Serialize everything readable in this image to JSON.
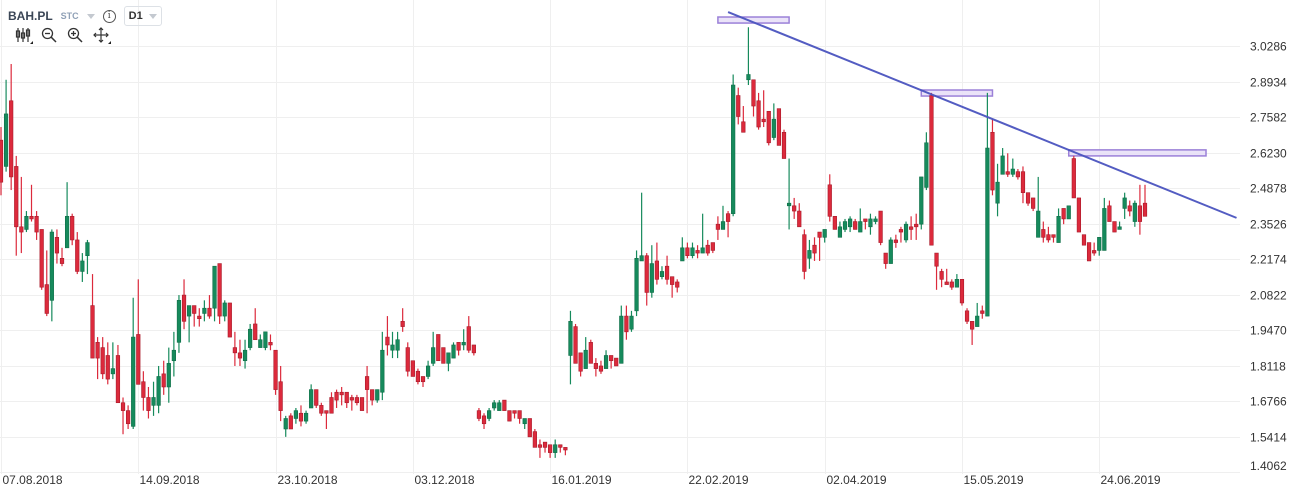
{
  "header": {
    "symbol": "BAH.PL",
    "market": "STC",
    "timeframe": "D1",
    "info_icon": "info-icon"
  },
  "toolbar": {
    "icons": [
      "candlestick-type-icon",
      "zoom-out-icon",
      "zoom-in-icon",
      "move-icon"
    ]
  },
  "colors": {
    "up": "#168a5c",
    "up_border": "#0f6e48",
    "down": "#dc2a3c",
    "down_border": "#a81a2a",
    "trendline": "#4a53bf",
    "zone_fill": "#e6def7",
    "zone_border": "#9b80d8",
    "grid": "#efefef"
  },
  "chart_data": {
    "type": "candlestick",
    "title": "BAH.PL D1",
    "ylim": [
      1.4062,
      3.2038
    ],
    "yticks": [
      "3.0286",
      "2.8934",
      "2.7582",
      "2.6230",
      "2.4878",
      "2.3526",
      "2.2174",
      "2.0822",
      "1.9470",
      "1.8118",
      "1.6766",
      "1.5414",
      "1.4062"
    ],
    "xticks": [
      {
        "index": 0,
        "label": "07.08.2018"
      },
      {
        "index": 27,
        "label": "14.09.2018"
      },
      {
        "index": 54,
        "label": "23.10.2018"
      },
      {
        "index": 81,
        "label": "03.12.2018"
      },
      {
        "index": 108,
        "label": "16.01.2019"
      },
      {
        "index": 135,
        "label": "22.02.2019"
      },
      {
        "index": 162,
        "label": "02.04.2019"
      },
      {
        "index": 189,
        "label": "15.05.2019"
      },
      {
        "index": 216,
        "label": "24.06.2019"
      }
    ],
    "candle_format": [
      "open",
      "high",
      "low",
      "close"
    ],
    "candles": [
      [
        2.67,
        2.72,
        2.46,
        2.51
      ],
      [
        2.57,
        2.9,
        2.55,
        2.77
      ],
      [
        2.82,
        2.96,
        2.48,
        2.53
      ],
      [
        2.57,
        2.61,
        2.23,
        2.34
      ],
      [
        2.34,
        2.53,
        2.24,
        2.32
      ],
      [
        2.33,
        2.4,
        2.32,
        2.38
      ],
      [
        2.38,
        2.5,
        2.36,
        2.37
      ],
      [
        2.38,
        2.4,
        2.29,
        2.32
      ],
      [
        2.33,
        2.33,
        2.1,
        2.11
      ],
      [
        2.12,
        2.25,
        2.0,
        2.01
      ],
      [
        2.06,
        2.33,
        1.98,
        2.32
      ],
      [
        2.3,
        2.33,
        2.2,
        2.24
      ],
      [
        2.22,
        2.26,
        2.19,
        2.2
      ],
      [
        2.26,
        2.51,
        2.26,
        2.38
      ],
      [
        2.38,
        2.39,
        2.27,
        2.29
      ],
      [
        2.29,
        2.32,
        2.16,
        2.17
      ],
      [
        2.17,
        2.24,
        2.13,
        2.21
      ],
      [
        2.23,
        2.29,
        2.16,
        2.28
      ],
      [
        2.04,
        2.16,
        1.84,
        1.84
      ],
      [
        1.9,
        1.92,
        1.76,
        1.84
      ],
      [
        1.88,
        1.92,
        1.76,
        1.78
      ],
      [
        1.85,
        1.9,
        1.74,
        1.76
      ],
      [
        1.78,
        1.9,
        1.76,
        1.8
      ],
      [
        1.85,
        1.89,
        1.67,
        1.67
      ],
      [
        1.67,
        1.69,
        1.55,
        1.64
      ],
      [
        1.64,
        1.66,
        1.57,
        1.59
      ],
      [
        1.58,
        2.07,
        1.57,
        1.92
      ],
      [
        1.93,
        2.14,
        1.74,
        1.74
      ],
      [
        1.75,
        1.79,
        1.64,
        1.69
      ],
      [
        1.69,
        1.73,
        1.61,
        1.64
      ],
      [
        1.66,
        1.75,
        1.62,
        1.69
      ],
      [
        1.66,
        1.81,
        1.63,
        1.77
      ],
      [
        1.78,
        1.83,
        1.7,
        1.73
      ],
      [
        1.73,
        1.88,
        1.67,
        1.82
      ],
      [
        1.83,
        1.94,
        1.77,
        1.87
      ],
      [
        1.9,
        2.08,
        1.86,
        2.06
      ],
      [
        2.08,
        2.14,
        1.95,
        1.98
      ],
      [
        2.0,
        2.04,
        1.9,
        2.04
      ],
      [
        2.04,
        2.04,
        1.96,
        2.01
      ],
      [
        2.0,
        2.03,
        1.96,
        1.99
      ],
      [
        2.01,
        2.06,
        1.98,
        2.03
      ],
      [
        2.03,
        2.08,
        1.99,
        2.0
      ],
      [
        2.03,
        2.19,
        1.98,
        2.19
      ],
      [
        2.2,
        2.2,
        1.97,
        2.0
      ],
      [
        2.0,
        2.06,
        1.98,
        2.05
      ],
      [
        2.05,
        2.05,
        1.92,
        1.92
      ],
      [
        1.88,
        1.94,
        1.81,
        1.86
      ],
      [
        1.86,
        1.91,
        1.81,
        1.84
      ],
      [
        1.83,
        1.91,
        1.8,
        1.87
      ],
      [
        1.88,
        1.97,
        1.87,
        1.95
      ],
      [
        1.97,
        2.03,
        1.91,
        1.91
      ],
      [
        1.88,
        1.93,
        1.88,
        1.91
      ],
      [
        1.88,
        1.94,
        1.87,
        1.94
      ],
      [
        1.9,
        1.93,
        1.87,
        1.89
      ],
      [
        1.87,
        1.87,
        1.7,
        1.72
      ],
      [
        1.75,
        1.81,
        1.6,
        1.64
      ],
      [
        1.57,
        1.62,
        1.54,
        1.61
      ],
      [
        1.62,
        1.63,
        1.57,
        1.57
      ],
      [
        1.61,
        1.65,
        1.59,
        1.64
      ],
      [
        1.63,
        1.66,
        1.58,
        1.6
      ],
      [
        1.6,
        1.64,
        1.59,
        1.63
      ],
      [
        1.65,
        1.74,
        1.65,
        1.72
      ],
      [
        1.72,
        1.72,
        1.65,
        1.66
      ],
      [
        1.66,
        1.67,
        1.62,
        1.63
      ],
      [
        1.64,
        1.64,
        1.57,
        1.63
      ],
      [
        1.69,
        1.71,
        1.63,
        1.63
      ],
      [
        1.71,
        1.72,
        1.65,
        1.68
      ],
      [
        1.71,
        1.73,
        1.66,
        1.7
      ],
      [
        1.71,
        1.71,
        1.65,
        1.67
      ],
      [
        1.69,
        1.7,
        1.64,
        1.68
      ],
      [
        1.69,
        1.7,
        1.66,
        1.67
      ],
      [
        1.69,
        1.69,
        1.64,
        1.64
      ],
      [
        1.77,
        1.81,
        1.63,
        1.72
      ],
      [
        1.72,
        1.72,
        1.66,
        1.68
      ],
      [
        1.68,
        1.72,
        1.67,
        1.72
      ],
      [
        1.71,
        1.94,
        1.68,
        1.87
      ],
      [
        1.92,
        2.0,
        1.85,
        1.89
      ],
      [
        1.87,
        1.94,
        1.84,
        1.89
      ],
      [
        1.87,
        1.94,
        1.84,
        1.91
      ],
      [
        1.98,
        2.03,
        1.94,
        1.96
      ],
      [
        1.88,
        1.9,
        1.77,
        1.79
      ],
      [
        1.83,
        1.83,
        1.77,
        1.77
      ],
      [
        1.79,
        1.8,
        1.74,
        1.75
      ],
      [
        1.77,
        1.77,
        1.73,
        1.75
      ],
      [
        1.77,
        1.83,
        1.76,
        1.81
      ],
      [
        1.82,
        1.94,
        1.81,
        1.88
      ],
      [
        1.93,
        1.93,
        1.83,
        1.83
      ],
      [
        1.88,
        1.88,
        1.82,
        1.82
      ],
      [
        1.82,
        1.86,
        1.79,
        1.86
      ],
      [
        1.84,
        1.9,
        1.84,
        1.89
      ],
      [
        1.9,
        1.9,
        1.85,
        1.87
      ],
      [
        1.89,
        1.95,
        1.87,
        1.9
      ],
      [
        1.96,
        2.0,
        1.86,
        1.87
      ],
      [
        1.89,
        1.89,
        1.85,
        1.86
      ],
      [
        1.64,
        1.65,
        1.6,
        1.61
      ],
      [
        1.62,
        1.63,
        1.57,
        1.59
      ],
      [
        1.61,
        1.65,
        1.6,
        1.64
      ],
      [
        1.65,
        1.68,
        1.64,
        1.67
      ],
      [
        1.64,
        1.68,
        1.64,
        1.67
      ],
      [
        1.68,
        1.68,
        1.64,
        1.64
      ],
      [
        1.64,
        1.64,
        1.6,
        1.6
      ],
      [
        1.64,
        1.64,
        1.61,
        1.63
      ],
      [
        1.64,
        1.64,
        1.59,
        1.61
      ],
      [
        1.59,
        1.61,
        1.57,
        1.61
      ],
      [
        1.61,
        1.61,
        1.54,
        1.54
      ],
      [
        1.56,
        1.57,
        1.5,
        1.5
      ],
      [
        1.51,
        1.53,
        1.46,
        1.5
      ],
      [
        1.52,
        1.52,
        1.48,
        1.5
      ],
      [
        1.51,
        1.51,
        1.46,
        1.48
      ],
      [
        1.48,
        1.53,
        1.46,
        1.51
      ],
      [
        1.51,
        1.51,
        1.48,
        1.5
      ],
      [
        1.5,
        1.5,
        1.47,
        1.49
      ],
      [
        1.85,
        2.02,
        1.74,
        1.98
      ],
      [
        1.96,
        1.97,
        1.82,
        1.82
      ],
      [
        1.86,
        1.86,
        1.77,
        1.79
      ],
      [
        1.8,
        1.92,
        1.8,
        1.87
      ],
      [
        1.9,
        1.91,
        1.82,
        1.82
      ],
      [
        1.82,
        1.84,
        1.77,
        1.8
      ],
      [
        1.81,
        1.83,
        1.78,
        1.79
      ],
      [
        1.8,
        1.87,
        1.8,
        1.85
      ],
      [
        1.85,
        1.85,
        1.8,
        1.83
      ],
      [
        1.84,
        1.84,
        1.81,
        1.81
      ],
      [
        1.82,
        2.04,
        1.82,
        2.0
      ],
      [
        2.0,
        2.04,
        1.91,
        1.94
      ],
      [
        1.95,
        2.02,
        1.94,
        2.0
      ],
      [
        2.02,
        2.25,
        2.0,
        2.22
      ],
      [
        2.21,
        2.47,
        2.21,
        2.23
      ],
      [
        2.23,
        2.24,
        2.04,
        2.09
      ],
      [
        2.09,
        2.27,
        2.07,
        2.2
      ],
      [
        2.21,
        2.28,
        2.12,
        2.14
      ],
      [
        2.15,
        2.19,
        2.14,
        2.17
      ],
      [
        2.19,
        2.23,
        2.12,
        2.14
      ],
      [
        2.15,
        2.15,
        2.07,
        2.12
      ],
      [
        2.13,
        2.14,
        2.09,
        2.11
      ],
      [
        2.21,
        2.3,
        2.21,
        2.26
      ],
      [
        2.26,
        2.28,
        2.22,
        2.23
      ],
      [
        2.23,
        2.28,
        2.22,
        2.26
      ],
      [
        2.25,
        2.27,
        2.22,
        2.24
      ],
      [
        2.24,
        2.39,
        2.24,
        2.26
      ],
      [
        2.27,
        2.29,
        2.23,
        2.24
      ],
      [
        2.28,
        2.28,
        2.24,
        2.25
      ],
      [
        2.35,
        2.38,
        2.29,
        2.33
      ],
      [
        2.33,
        2.42,
        2.33,
        2.36
      ],
      [
        2.39,
        2.4,
        2.3,
        2.36
      ],
      [
        2.39,
        2.92,
        2.38,
        2.88
      ],
      [
        2.84,
        2.87,
        2.73,
        2.76
      ],
      [
        2.74,
        2.8,
        2.7,
        2.7
      ],
      [
        2.9,
        3.1,
        2.88,
        2.92
      ],
      [
        2.9,
        2.9,
        2.76,
        2.8
      ],
      [
        2.82,
        2.85,
        2.71,
        2.72
      ],
      [
        2.75,
        2.86,
        2.72,
        2.74
      ],
      [
        2.78,
        2.78,
        2.65,
        2.66
      ],
      [
        2.68,
        2.81,
        2.67,
        2.75
      ],
      [
        2.79,
        2.79,
        2.65,
        2.65
      ],
      [
        2.7,
        2.71,
        2.6,
        2.6
      ],
      [
        2.42,
        2.6,
        2.33,
        2.43
      ],
      [
        2.42,
        2.45,
        2.37,
        2.4
      ],
      [
        2.4,
        2.43,
        2.34,
        2.34
      ],
      [
        2.31,
        2.33,
        2.14,
        2.17
      ],
      [
        2.22,
        2.29,
        2.18,
        2.25
      ],
      [
        2.27,
        2.3,
        2.21,
        2.24
      ],
      [
        2.32,
        2.32,
        2.21,
        2.3
      ],
      [
        2.3,
        2.33,
        2.28,
        2.33
      ],
      [
        2.5,
        2.54,
        2.36,
        2.38
      ],
      [
        2.38,
        2.38,
        2.33,
        2.33
      ],
      [
        2.3,
        2.36,
        2.3,
        2.34
      ],
      [
        2.33,
        2.37,
        2.32,
        2.36
      ],
      [
        2.34,
        2.38,
        2.32,
        2.37
      ],
      [
        2.36,
        2.37,
        2.33,
        2.33
      ],
      [
        2.32,
        2.41,
        2.32,
        2.36
      ],
      [
        2.37,
        2.37,
        2.33,
        2.36
      ],
      [
        2.34,
        2.39,
        2.31,
        2.37
      ],
      [
        2.36,
        2.38,
        2.35,
        2.37
      ],
      [
        2.4,
        2.4,
        2.27,
        2.28
      ],
      [
        2.24,
        2.24,
        2.18,
        2.2
      ],
      [
        2.2,
        2.3,
        2.2,
        2.29
      ],
      [
        2.29,
        2.31,
        2.26,
        2.28
      ],
      [
        2.33,
        2.34,
        2.28,
        2.32
      ],
      [
        2.29,
        2.36,
        2.28,
        2.35
      ],
      [
        2.34,
        2.38,
        2.29,
        2.33
      ],
      [
        2.35,
        2.39,
        2.29,
        2.34
      ],
      [
        2.35,
        2.53,
        2.33,
        2.53
      ],
      [
        2.49,
        2.7,
        2.48,
        2.66
      ],
      [
        2.84,
        2.85,
        2.27,
        2.27
      ],
      [
        2.24,
        2.24,
        2.1,
        2.19
      ],
      [
        2.17,
        2.18,
        2.11,
        2.14
      ],
      [
        2.13,
        2.18,
        2.12,
        2.12
      ],
      [
        2.13,
        2.14,
        2.1,
        2.11
      ],
      [
        2.11,
        2.16,
        2.11,
        2.14
      ],
      [
        2.14,
        2.14,
        2.04,
        2.05
      ],
      [
        2.02,
        2.03,
        1.97,
        1.98
      ],
      [
        1.98,
        1.98,
        1.89,
        1.95
      ],
      [
        1.96,
        2.05,
        1.96,
        2.0
      ],
      [
        2.02,
        2.04,
        1.99,
        2.01
      ],
      [
        2.0,
        2.85,
        2.0,
        2.64
      ],
      [
        2.7,
        2.75,
        2.46,
        2.48
      ],
      [
        2.43,
        2.58,
        2.38,
        2.51
      ],
      [
        2.54,
        2.64,
        2.54,
        2.61
      ],
      [
        2.55,
        2.62,
        2.53,
        2.54
      ],
      [
        2.54,
        2.6,
        2.53,
        2.56
      ],
      [
        2.55,
        2.56,
        2.52,
        2.53
      ],
      [
        2.55,
        2.57,
        2.43,
        2.47
      ],
      [
        2.47,
        2.47,
        2.42,
        2.43
      ],
      [
        2.45,
        2.45,
        2.4,
        2.41
      ],
      [
        2.3,
        2.53,
        2.3,
        2.4
      ],
      [
        2.33,
        2.36,
        2.28,
        2.3
      ],
      [
        2.31,
        2.34,
        2.28,
        2.29
      ],
      [
        2.31,
        2.31,
        2.28,
        2.3
      ],
      [
        2.28,
        2.41,
        2.28,
        2.38
      ],
      [
        2.41,
        2.41,
        2.35,
        2.37
      ],
      [
        2.37,
        2.42,
        2.37,
        2.42
      ],
      [
        2.6,
        2.61,
        2.45,
        2.45
      ],
      [
        2.45,
        2.45,
        2.32,
        2.32
      ],
      [
        2.31,
        2.31,
        2.27,
        2.27
      ],
      [
        2.28,
        2.28,
        2.21,
        2.21
      ],
      [
        2.25,
        2.28,
        2.23,
        2.24
      ],
      [
        2.25,
        2.3,
        2.23,
        2.3
      ],
      [
        2.25,
        2.45,
        2.25,
        2.41
      ],
      [
        2.42,
        2.44,
        2.36,
        2.36
      ],
      [
        2.36,
        2.36,
        2.32,
        2.32
      ],
      [
        2.33,
        2.36,
        2.33,
        2.34
      ],
      [
        2.41,
        2.47,
        2.37,
        2.45
      ],
      [
        2.42,
        2.44,
        2.38,
        2.4
      ],
      [
        2.36,
        2.44,
        2.34,
        2.43
      ],
      [
        2.42,
        2.5,
        2.31,
        2.36
      ],
      [
        2.43,
        2.5,
        2.38,
        2.38
      ]
    ],
    "trendline": {
      "from": {
        "index": 143,
        "price": 3.158
      },
      "to": {
        "index": 243,
        "price": 2.374
      }
    },
    "zones": [
      {
        "from_index": 141,
        "to_index": 155,
        "top": 3.139,
        "bottom": 3.116
      },
      {
        "from_index": 181,
        "to_index": 195,
        "top": 2.861,
        "bottom": 2.838
      },
      {
        "from_index": 210,
        "to_index": 237,
        "top": 2.633,
        "bottom": 2.61
      }
    ],
    "grid": true
  }
}
